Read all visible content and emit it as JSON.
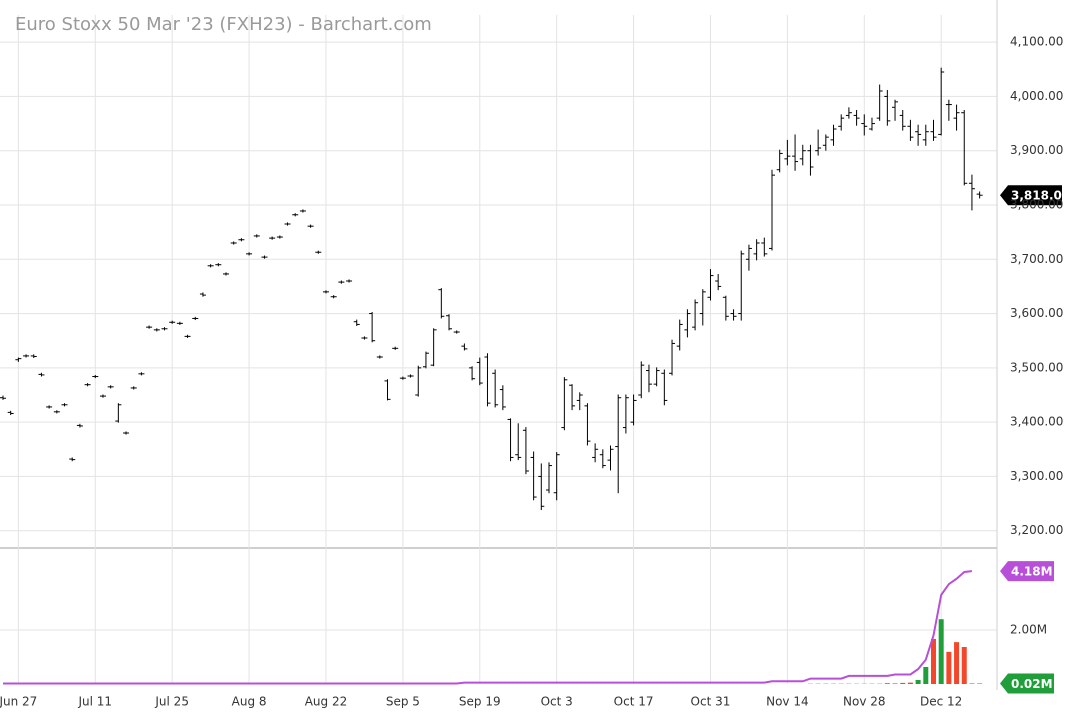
{
  "chart_data": [
    {
      "type": "ohlc",
      "title": "Euro Stoxx 50 Mar '23 (FXH23) - Barchart.com",
      "color": "#000000",
      "categories": [
        null,
        null,
        "Jun 27",
        null,
        null,
        null,
        null,
        null,
        null,
        null,
        null,
        null,
        "Jul 11",
        null,
        null,
        null,
        null,
        null,
        null,
        null,
        null,
        null,
        "Jul 25",
        null,
        null,
        null,
        null,
        null,
        null,
        null,
        null,
        null,
        "Aug 8",
        null,
        null,
        null,
        null,
        null,
        null,
        null,
        null,
        null,
        "Aug 22",
        null,
        null,
        null,
        null,
        null,
        null,
        null,
        null,
        null,
        "Sep 5",
        null,
        null,
        null,
        null,
        null,
        null,
        null,
        null,
        null,
        "Sep 19",
        null,
        null,
        null,
        null,
        null,
        null,
        null,
        null,
        null,
        "Oct 3",
        null,
        null,
        null,
        null,
        null,
        null,
        null,
        null,
        null,
        "Oct 17",
        null,
        null,
        null,
        null,
        null,
        null,
        null,
        null,
        null,
        "Oct 31",
        null,
        null,
        null,
        null,
        null,
        null,
        null,
        null,
        null,
        "Nov 14",
        null,
        null,
        null,
        null,
        null,
        null,
        null,
        null,
        null,
        "Nov 28",
        null,
        null,
        null,
        null,
        null,
        null,
        null,
        null,
        null,
        "Dec 12",
        null,
        null,
        null,
        null,
        null
      ],
      "open": [
        3445,
        3418,
        3515,
        3522,
        3522,
        3488,
        3428,
        3419,
        3432,
        3332,
        3394,
        3469,
        3484,
        3448,
        3465,
        3402,
        3380,
        3463,
        3489,
        3575,
        3570,
        3572,
        3584,
        3582,
        3558,
        3591,
        3636,
        3688,
        3690,
        3673,
        3730,
        3736,
        3710,
        3743,
        3704,
        3739,
        3741,
        3765,
        3782,
        3789,
        3761,
        3713,
        3640,
        3631,
        3658,
        3660,
        3585,
        3555,
        3600,
        3520,
        3476,
        3536,
        3481,
        3485,
        3450,
        3502,
        3505,
        3644,
        3596,
        3566,
        3540,
        3500,
        3510,
        3520,
        3490,
        3460,
        3405,
        3340,
        3385,
        3335,
        3300,
        3275,
        3270,
        3390,
        3468,
        3440,
        3430,
        3335,
        3340,
        3330,
        3355,
        3390,
        3400,
        3450,
        3495,
        3470,
        3490,
        3490,
        3540,
        3570,
        3575,
        3600,
        3630,
        3660,
        3630,
        3600,
        3600,
        3700,
        3710,
        3730,
        3720,
        3865,
        3885,
        3890,
        3885,
        3900,
        3900,
        3910,
        3920,
        3945,
        3965,
        3965,
        3950,
        3940,
        3960,
        4000,
        3980,
        3965,
        3945,
        3935,
        3920,
        3935,
        3930,
        3985,
        3960,
        3970,
        3840,
        3820
      ],
      "high": [
        3448,
        3420,
        3518,
        3524,
        3524,
        3490,
        3430,
        3421,
        3434,
        3334,
        3396,
        3471,
        3486,
        3450,
        3467,
        3434,
        3382,
        3465,
        3491,
        3577,
        3572,
        3574,
        3586,
        3584,
        3560,
        3593,
        3638,
        3690,
        3692,
        3675,
        3732,
        3738,
        3712,
        3745,
        3706,
        3741,
        3743,
        3767,
        3784,
        3791,
        3763,
        3715,
        3642,
        3633,
        3660,
        3662,
        3588,
        3557,
        3602,
        3522,
        3478,
        3538,
        3483,
        3487,
        3503,
        3529,
        3572,
        3646,
        3598,
        3568,
        3544,
        3502,
        3518,
        3526,
        3496,
        3467,
        3406,
        3397,
        3390,
        3345,
        3323,
        3325,
        3344,
        3482,
        3469,
        3454,
        3434,
        3360,
        3349,
        3356,
        3450,
        3450,
        3450,
        3511,
        3505,
        3500,
        3496,
        3551,
        3588,
        3607,
        3625,
        3644,
        3681,
        3672,
        3632,
        3607,
        3715,
        3726,
        3736,
        3739,
        3864,
        3901,
        3919,
        3929,
        3910,
        3910,
        3938,
        3929,
        3947,
        3966,
        3979,
        3974,
        3966,
        3960,
        4021,
        4011,
        3993,
        3974,
        3956,
        3947,
        3947,
        3956,
        4052,
        3993,
        3984,
        3974,
        3855,
        3824
      ],
      "low": [
        3442,
        3414,
        3512,
        3520,
        3519,
        3485,
        3426,
        3417,
        3430,
        3329,
        3391,
        3467,
        3482,
        3446,
        3463,
        3400,
        3378,
        3461,
        3487,
        3573,
        3568,
        3570,
        3582,
        3580,
        3556,
        3589,
        3632,
        3686,
        3688,
        3671,
        3728,
        3734,
        3708,
        3741,
        3702,
        3737,
        3739,
        3763,
        3780,
        3787,
        3759,
        3711,
        3638,
        3629,
        3656,
        3658,
        3578,
        3553,
        3548,
        3518,
        3441,
        3534,
        3479,
        3483,
        3448,
        3500,
        3504,
        3592,
        3570,
        3564,
        3533,
        3478,
        3469,
        3430,
        3428,
        3423,
        3329,
        3331,
        3305,
        3257,
        3239,
        3270,
        3257,
        3386,
        3423,
        3423,
        3358,
        3327,
        3316,
        3312,
        3270,
        3380,
        3395,
        3445,
        3456,
        3467,
        3432,
        3487,
        3533,
        3557,
        3570,
        3579,
        3625,
        3644,
        3588,
        3588,
        3588,
        3680,
        3699,
        3706,
        3717,
        3861,
        3874,
        3864,
        3874,
        3855,
        3892,
        3901,
        3910,
        3938,
        3960,
        3947,
        3929,
        3938,
        3956,
        3947,
        3956,
        3938,
        3919,
        3910,
        3910,
        3919,
        3929,
        3956,
        3938,
        3837,
        3791,
        3813
      ],
      "close": [
        3444,
        3416,
        3517,
        3522,
        3521,
        3487,
        3428,
        3419,
        3432,
        3331,
        3393,
        3469,
        3484,
        3448,
        3465,
        3432,
        3380,
        3463,
        3489,
        3575,
        3570,
        3572,
        3584,
        3582,
        3558,
        3591,
        3634,
        3688,
        3690,
        3673,
        3730,
        3736,
        3710,
        3743,
        3704,
        3739,
        3741,
        3765,
        3782,
        3789,
        3761,
        3713,
        3640,
        3631,
        3658,
        3660,
        3580,
        3555,
        3550,
        3520,
        3442,
        3536,
        3481,
        3485,
        3500,
        3527,
        3570,
        3595,
        3572,
        3566,
        3535,
        3480,
        3472,
        3435,
        3432,
        3428,
        3335,
        3335,
        3310,
        3262,
        3245,
        3320,
        3340,
        3478,
        3430,
        3450,
        3365,
        3350,
        3320,
        3350,
        3445,
        3445,
        3440,
        3505,
        3470,
        3495,
        3440,
        3545,
        3580,
        3600,
        3620,
        3640,
        3670,
        3650,
        3595,
        3595,
        3710,
        3720,
        3730,
        3710,
        3855,
        3895,
        3890,
        3880,
        3900,
        3870,
        3905,
        3925,
        3940,
        3960,
        3970,
        3960,
        3945,
        3950,
        4010,
        3955,
        3990,
        3945,
        3925,
        3930,
        3935,
        3925,
        4045,
        3985,
        3970,
        3840,
        3830,
        3818
      ],
      "ylim": [
        3170,
        4150
      ],
      "yticks": [
        {
          "value": 3200,
          "label": "3,200.00"
        },
        {
          "value": 3300,
          "label": "3,300.00"
        },
        {
          "value": 3400,
          "label": "3,400.00"
        },
        {
          "value": 3500,
          "label": "3,500.00"
        },
        {
          "value": 3600,
          "label": "3,600.00"
        },
        {
          "value": 3700,
          "label": "3,700.00"
        },
        {
          "value": 3800,
          "label": "3,800.00"
        },
        {
          "value": 3900,
          "label": "3,900.00"
        },
        {
          "value": 4000,
          "label": "4,000.00"
        },
        {
          "value": 4100,
          "label": "4,100.00"
        }
      ],
      "last_price": {
        "value": 3818,
        "label": "3,818.00"
      },
      "grid": true
    },
    {
      "type": "volume",
      "up_color": "#1f9e3a",
      "down_color": "#f2472b",
      "series": [
        {
          "kind": "bar",
          "values": [
            0,
            0,
            0,
            0,
            0,
            0,
            0,
            0,
            0,
            0,
            0,
            0,
            0,
            0,
            0,
            0,
            0,
            0,
            0,
            0,
            0,
            0,
            0,
            0,
            0,
            0,
            0,
            0,
            0,
            0,
            0,
            0,
            0,
            0,
            0,
            0,
            0,
            0,
            0,
            0,
            0,
            0,
            0,
            0,
            0,
            0,
            0,
            0,
            0,
            0,
            0,
            0,
            0,
            0,
            0,
            0,
            0,
            0,
            0,
            0,
            0,
            0,
            0,
            0,
            0,
            0,
            0,
            0,
            0,
            0,
            0,
            0,
            0,
            0,
            0,
            0,
            0,
            0,
            0,
            0,
            0,
            0,
            0,
            0,
            0,
            0,
            0,
            0,
            0,
            0,
            0,
            0,
            0,
            0,
            0,
            0,
            0,
            0,
            0,
            0,
            0,
            0,
            0,
            0,
            0,
            0.01,
            0.01,
            0.01,
            0.01,
            0.01,
            0.01,
            0.01,
            0.01,
            0.01,
            0.01,
            0.03,
            0.02,
            0.04,
            0.05,
            0.15,
            0.63,
            1.67,
            2.4,
            1.19,
            1.55,
            1.37,
            0.02,
            0.02
          ],
          "last_label": {
            "value": 0.02,
            "label": "0.02M"
          },
          "color": "#1f9e3a"
        },
        {
          "kind": "line",
          "color": "#b84fd8",
          "values": [
            0.02,
            0.02,
            0.02,
            0.02,
            0.02,
            0.02,
            0.02,
            0.02,
            0.02,
            0.02,
            0.02,
            0.02,
            0.02,
            0.02,
            0.02,
            0.02,
            0.02,
            0.02,
            0.02,
            0.02,
            0.02,
            0.02,
            0.02,
            0.02,
            0.02,
            0.02,
            0.02,
            0.02,
            0.02,
            0.02,
            0.02,
            0.02,
            0.02,
            0.02,
            0.02,
            0.02,
            0.02,
            0.02,
            0.02,
            0.02,
            0.02,
            0.02,
            0.02,
            0.02,
            0.02,
            0.02,
            0.02,
            0.02,
            0.02,
            0.02,
            0.02,
            0.02,
            0.02,
            0.02,
            0.02,
            0.02,
            0.02,
            0.02,
            0.02,
            0.02,
            0.05,
            0.05,
            0.05,
            0.05,
            0.05,
            0.05,
            0.05,
            0.05,
            0.05,
            0.05,
            0.05,
            0.05,
            0.05,
            0.05,
            0.05,
            0.05,
            0.05,
            0.05,
            0.05,
            0.05,
            0.05,
            0.05,
            0.05,
            0.05,
            0.05,
            0.05,
            0.05,
            0.05,
            0.05,
            0.05,
            0.05,
            0.05,
            0.05,
            0.05,
            0.05,
            0.05,
            0.05,
            0.05,
            0.05,
            0.05,
            0.1,
            0.1,
            0.1,
            0.1,
            0.1,
            0.2,
            0.2,
            0.2,
            0.2,
            0.2,
            0.3,
            0.3,
            0.3,
            0.3,
            0.3,
            0.3,
            0.35,
            0.35,
            0.35,
            0.55,
            0.9,
            1.8,
            3.3,
            3.7,
            3.9,
            4.15,
            4.18,
            null
          ],
          "last_label": {
            "value": 4.18,
            "label": "4.18M"
          }
        }
      ],
      "ylim": [
        0,
        5
      ],
      "yticks": [
        {
          "value": 2,
          "label": "2.00M"
        }
      ]
    }
  ]
}
